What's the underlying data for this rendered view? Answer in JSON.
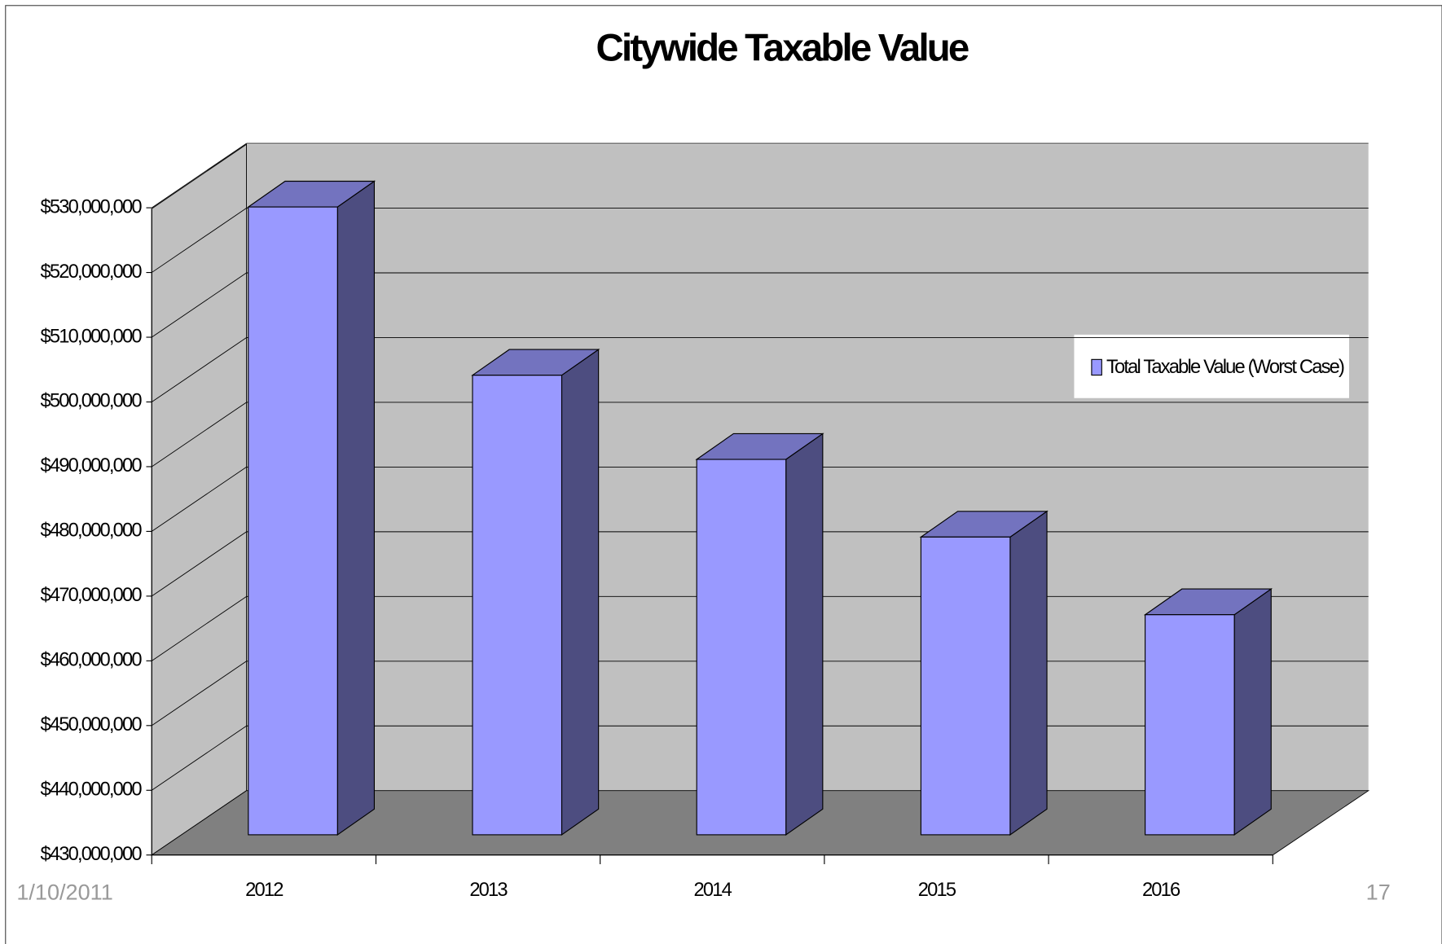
{
  "chart_data": {
    "type": "bar3d",
    "title": "Citywide Taxable Value",
    "categories": [
      "2012",
      "2013",
      "2014",
      "2015",
      "2016"
    ],
    "series": [
      {
        "name": "Total Taxable Value (Worst Case)",
        "color": "#9999ff",
        "values": [
          527000000,
          501000000,
          488000000,
          476000000,
          464000000
        ]
      }
    ],
    "ylim": [
      430000000,
      530000000
    ],
    "yticks": [
      {
        "value": 430000000,
        "label": "$430,000,000"
      },
      {
        "value": 440000000,
        "label": "$440,000,000"
      },
      {
        "value": 450000000,
        "label": "$450,000,000"
      },
      {
        "value": 460000000,
        "label": "$460,000,000"
      },
      {
        "value": 470000000,
        "label": "$470,000,000"
      },
      {
        "value": 480000000,
        "label": "$480,000,000"
      },
      {
        "value": 490000000,
        "label": "$490,000,000"
      },
      {
        "value": 500000000,
        "label": "$500,000,000"
      },
      {
        "value": 510000000,
        "label": "$510,000,000"
      },
      {
        "value": 520000000,
        "label": "$520,000,000"
      },
      {
        "value": 530000000,
        "label": "$530,000,000"
      }
    ],
    "grid": true,
    "legend": "right"
  },
  "slide": {
    "date": "1/10/2011",
    "page_number": "17"
  }
}
